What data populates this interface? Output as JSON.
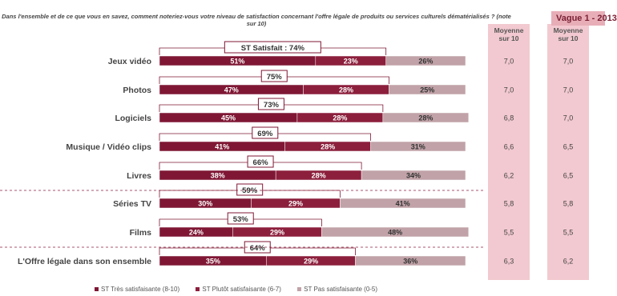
{
  "header": {
    "question": "Dans l'ensemble et de ce que vous en savez, comment noteriez-vous votre niveau de satisfaction concernant l'offre légale de produits ou services culturels dématérialisés ? (note sur 10)",
    "vague_tab": "Vague 1 - 2013"
  },
  "columns": {
    "moyenne_label_1": "Moyenne",
    "moyenne_label_2": "sur 10"
  },
  "colors": {
    "tres": "#7f1734",
    "plutot": "#8c1f3c",
    "pas": "#c0a2a8",
    "panel": "#f2c9d0",
    "bracket": "#7f1734"
  },
  "chart_data": {
    "type": "bar",
    "stacked": true,
    "orientation": "horizontal",
    "categories": [
      "Jeux vidéo",
      "Photos",
      "Logiciels",
      "Musique / Vidéo clips",
      "Livres",
      "Séries TV",
      "Films",
      "L'Offre légale dans son ensemble"
    ],
    "series": [
      {
        "name": "ST Très satisfaisante (8-10)",
        "values": [
          51,
          47,
          45,
          41,
          38,
          30,
          24,
          35
        ],
        "labels": [
          "51%",
          "47%",
          "45%",
          "41%",
          "38%",
          "30%",
          "24%",
          "35%"
        ]
      },
      {
        "name": "ST Plutôt satisfaisante (6-7)",
        "values": [
          23,
          28,
          28,
          28,
          28,
          29,
          29,
          29
        ],
        "labels": [
          "23%",
          "28%",
          "28%",
          "28%",
          "28%",
          "29%",
          "29%",
          "29%"
        ]
      },
      {
        "name": "ST Pas satisfaisante (0-5)",
        "values": [
          26,
          25,
          28,
          31,
          34,
          41,
          48,
          36
        ],
        "labels": [
          "26%",
          "25%",
          "28%",
          "31%",
          "34%",
          "41%",
          "48%",
          "36%"
        ]
      }
    ],
    "st_satisfait_values": [
      74,
      75,
      73,
      69,
      66,
      59,
      53,
      64
    ],
    "st_satisfait_labels": [
      "ST Satisfait : 74%",
      "75%",
      "73%",
      "69%",
      "66%",
      "59%",
      "53%",
      "64%"
    ],
    "moyenne": [
      "7,0",
      "7,0",
      "6,8",
      "6,6",
      "6,2",
      "5,8",
      "5,5",
      "6,3"
    ],
    "moyenne_vague1": [
      "7,0",
      "7,0",
      "7,0",
      "6,5",
      "6,5",
      "5,8",
      "5,5",
      "6,2"
    ],
    "xlim": [
      0,
      100
    ],
    "legend_position": "bottom"
  }
}
